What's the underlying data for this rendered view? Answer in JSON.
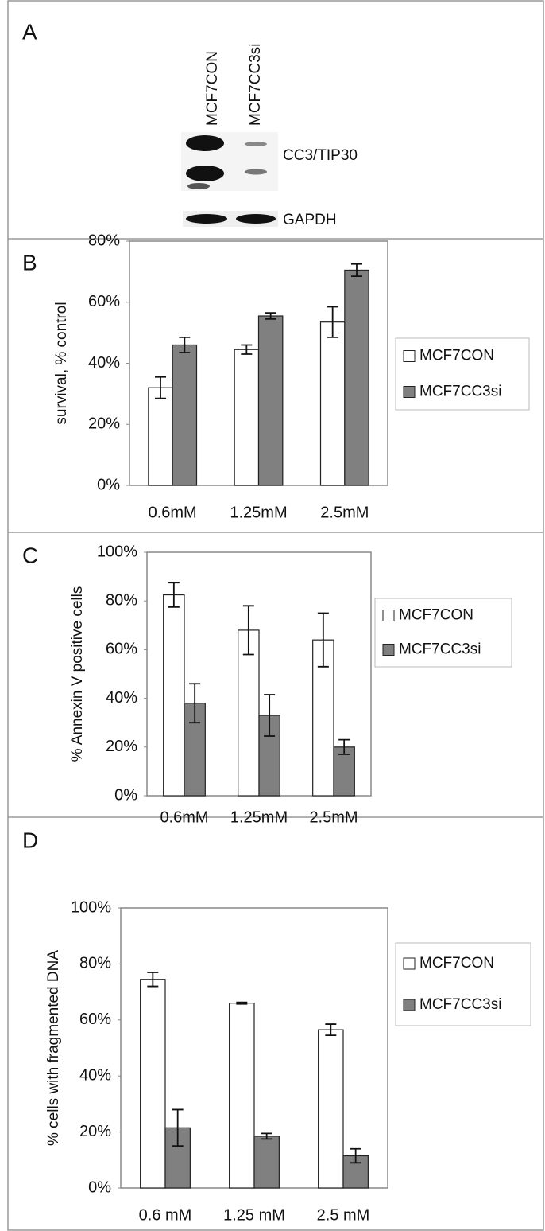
{
  "blot": {
    "panel": "A",
    "lanes": [
      "MCF7CON",
      "MCF7CC3si"
    ],
    "bands": [
      "CC3/TIP30",
      "GAPDH"
    ]
  },
  "chart_data": [
    {
      "type": "bar",
      "panel": "B",
      "y_label": "survival, % control",
      "categories": [
        "0.6mM",
        "1.25mM",
        "2.5mM"
      ],
      "series": [
        {
          "name": "MCF7CON",
          "color": "#ffffff",
          "values": [
            32,
            44.5,
            53.5
          ],
          "errors": [
            3.5,
            1.5,
            5
          ]
        },
        {
          "name": "MCF7CC3si",
          "color": "#808080",
          "values": [
            46,
            55.5,
            70.5
          ],
          "errors": [
            2.5,
            1,
            2
          ]
        }
      ],
      "ylim": [
        0,
        80
      ],
      "yticks": [
        {
          "value": 0,
          "label": "0%"
        },
        {
          "value": 20,
          "label": "20%"
        },
        {
          "value": 40,
          "label": "40%"
        },
        {
          "value": 60,
          "label": "60%"
        },
        {
          "value": 80,
          "label": "80%"
        }
      ],
      "legend": "right"
    },
    {
      "type": "bar",
      "panel": "C",
      "y_label": "% Annexin V positive cells",
      "categories": [
        "0.6mM",
        "1.25mM",
        "2.5mM"
      ],
      "series": [
        {
          "name": "MCF7CON",
          "color": "#ffffff",
          "values": [
            82.5,
            68,
            64
          ],
          "errors": [
            5,
            10,
            11
          ]
        },
        {
          "name": "MCF7CC3si",
          "color": "#808080",
          "values": [
            38,
            33,
            20
          ],
          "errors": [
            8,
            8.5,
            3
          ]
        }
      ],
      "ylim": [
        0,
        100
      ],
      "yticks": [
        {
          "value": 0,
          "label": "0%"
        },
        {
          "value": 20,
          "label": "20%"
        },
        {
          "value": 40,
          "label": "40%"
        },
        {
          "value": 60,
          "label": "60%"
        },
        {
          "value": 80,
          "label": "80%"
        },
        {
          "value": 100,
          "label": "100%"
        }
      ],
      "legend": "right"
    },
    {
      "type": "bar",
      "panel": "D",
      "y_label": "% cells with fragmented DNA",
      "categories": [
        "0.6 mM",
        "1.25 mM",
        "2.5 mM"
      ],
      "series": [
        {
          "name": "MCF7CON",
          "color": "#ffffff",
          "values": [
            74.5,
            66,
            56.5
          ],
          "errors": [
            2.5,
            0.3,
            2
          ]
        },
        {
          "name": "MCF7CC3si",
          "color": "#808080",
          "values": [
            21.5,
            18.5,
            11.5
          ],
          "errors": [
            6.5,
            1,
            2.5
          ]
        }
      ],
      "ylim": [
        0,
        100
      ],
      "yticks": [
        {
          "value": 0,
          "label": "0%"
        },
        {
          "value": 20,
          "label": "20%"
        },
        {
          "value": 40,
          "label": "40%"
        },
        {
          "value": 60,
          "label": "60%"
        },
        {
          "value": 80,
          "label": "80%"
        },
        {
          "value": 100,
          "label": "100%"
        }
      ],
      "legend": "right"
    }
  ]
}
